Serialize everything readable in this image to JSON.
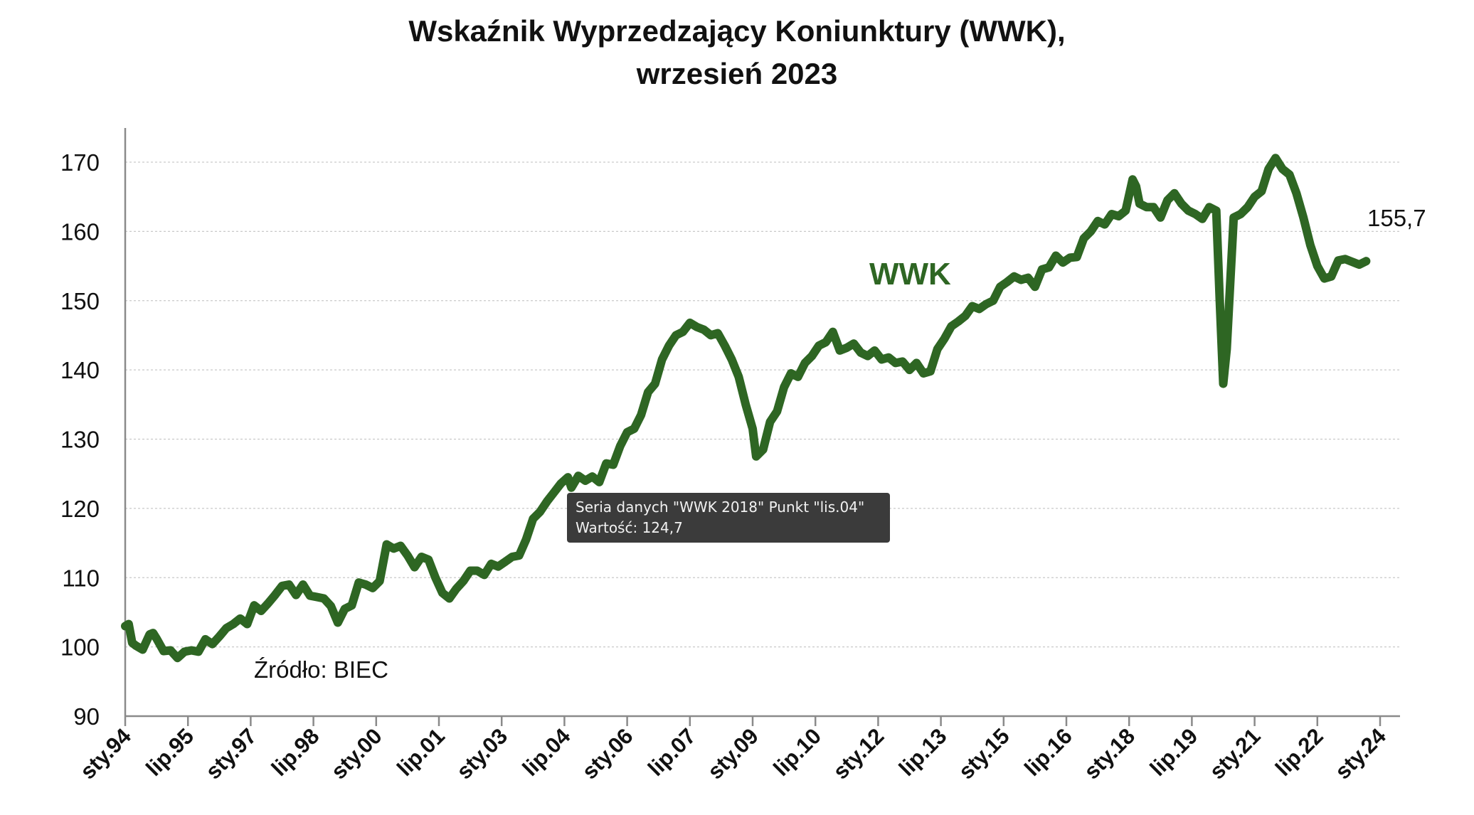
{
  "title_lines": [
    "Wskaźnik Wyprzedzający Koniunktury (WWK),",
    "wrzesień 2023"
  ],
  "series_label": "WWK",
  "end_value_label": "155,7",
  "source_label": "Źródło: BIEC",
  "tooltip": {
    "line1": "Seria danych \"WWK 2018\" Punkt \"lis.04\"",
    "line2": "Wartość: 124,7"
  },
  "colors": {
    "series": "#2e6623",
    "axis": "#8a8a8a",
    "grid": "#c9c9c9"
  },
  "chart_data": {
    "type": "line",
    "title": "Wskaźnik Wyprzedzający Koniunktury (WWK), wrzesień 2023",
    "xlabel": "",
    "ylabel": "",
    "ylim": [
      90,
      170
    ],
    "yticks": [
      90,
      100,
      110,
      120,
      130,
      140,
      150,
      160,
      170
    ],
    "xlim": [
      "1994-01",
      "2024-01"
    ],
    "xticks": [
      {
        "date": "1994-01",
        "label": "sty.94"
      },
      {
        "date": "1995-07",
        "label": "lip.95"
      },
      {
        "date": "1997-01",
        "label": "sty.97"
      },
      {
        "date": "1998-07",
        "label": "lip.98"
      },
      {
        "date": "2000-01",
        "label": "sty.00"
      },
      {
        "date": "2001-07",
        "label": "lip.01"
      },
      {
        "date": "2003-01",
        "label": "sty.03"
      },
      {
        "date": "2004-07",
        "label": "lip.04"
      },
      {
        "date": "2006-01",
        "label": "sty.06"
      },
      {
        "date": "2007-07",
        "label": "lip.07"
      },
      {
        "date": "2009-01",
        "label": "sty.09"
      },
      {
        "date": "2010-07",
        "label": "lip.10"
      },
      {
        "date": "2012-01",
        "label": "sty.12"
      },
      {
        "date": "2013-07",
        "label": "lip.13"
      },
      {
        "date": "2015-01",
        "label": "sty.15"
      },
      {
        "date": "2016-07",
        "label": "lip.16"
      },
      {
        "date": "2018-01",
        "label": "sty.18"
      },
      {
        "date": "2019-07",
        "label": "lip.19"
      },
      {
        "date": "2021-01",
        "label": "sty.21"
      },
      {
        "date": "2022-07",
        "label": "lip.22"
      },
      {
        "date": "2024-01",
        "label": "sty.24"
      }
    ],
    "grid": true,
    "series": [
      {
        "name": "WWK",
        "points": [
          [
            "1994-01",
            103.0
          ],
          [
            "1994-02",
            103.3
          ],
          [
            "1994-03",
            100.6
          ],
          [
            "1994-04",
            100.2
          ],
          [
            "1994-06",
            99.6
          ],
          [
            "1994-08",
            101.8
          ],
          [
            "1994-09",
            102.0
          ],
          [
            "1994-10",
            101.2
          ],
          [
            "1994-12",
            99.4
          ],
          [
            "1995-02",
            99.5
          ],
          [
            "1995-04",
            98.4
          ],
          [
            "1995-06",
            99.3
          ],
          [
            "1995-08",
            99.5
          ],
          [
            "1995-10",
            99.3
          ],
          [
            "1995-12",
            101.1
          ],
          [
            "1996-02",
            100.4
          ],
          [
            "1996-04",
            101.5
          ],
          [
            "1996-06",
            102.7
          ],
          [
            "1996-08",
            103.3
          ],
          [
            "1996-10",
            104.1
          ],
          [
            "1996-12",
            103.3
          ],
          [
            "1997-02",
            106.0
          ],
          [
            "1997-04",
            105.2
          ],
          [
            "1997-06",
            106.3
          ],
          [
            "1997-08",
            107.5
          ],
          [
            "1997-10",
            108.8
          ],
          [
            "1997-12",
            109.0
          ],
          [
            "1998-02",
            107.5
          ],
          [
            "1998-04",
            109.0
          ],
          [
            "1998-06",
            107.4
          ],
          [
            "1998-08",
            107.2
          ],
          [
            "1998-10",
            107.0
          ],
          [
            "1998-12",
            105.9
          ],
          [
            "1999-02",
            103.5
          ],
          [
            "1999-04",
            105.5
          ],
          [
            "1999-06",
            106.0
          ],
          [
            "1999-08",
            109.3
          ],
          [
            "1999-10",
            109.0
          ],
          [
            "1999-12",
            108.5
          ],
          [
            "2000-02",
            109.5
          ],
          [
            "2000-04",
            114.8
          ],
          [
            "2000-06",
            114.2
          ],
          [
            "2000-08",
            114.6
          ],
          [
            "2000-10",
            113.2
          ],
          [
            "2000-12",
            111.5
          ],
          [
            "2001-02",
            113.0
          ],
          [
            "2001-04",
            112.6
          ],
          [
            "2001-06",
            110.0
          ],
          [
            "2001-08",
            107.8
          ],
          [
            "2001-10",
            107.0
          ],
          [
            "2001-12",
            108.4
          ],
          [
            "2002-02",
            109.5
          ],
          [
            "2002-04",
            111.0
          ],
          [
            "2002-06",
            111.0
          ],
          [
            "2002-08",
            110.4
          ],
          [
            "2002-10",
            112.0
          ],
          [
            "2002-12",
            111.6
          ],
          [
            "2003-02",
            112.3
          ],
          [
            "2003-04",
            113.0
          ],
          [
            "2003-06",
            113.2
          ],
          [
            "2003-08",
            115.5
          ],
          [
            "2003-10",
            118.5
          ],
          [
            "2003-12",
            119.5
          ],
          [
            "2004-02",
            121.0
          ],
          [
            "2004-04",
            122.3
          ],
          [
            "2004-06",
            123.6
          ],
          [
            "2004-08",
            124.5
          ],
          [
            "2004-09",
            123.0
          ],
          [
            "2004-11",
            124.7
          ],
          [
            "2005-01",
            124.0
          ],
          [
            "2005-03",
            124.6
          ],
          [
            "2005-05",
            123.8
          ],
          [
            "2005-07",
            126.5
          ],
          [
            "2005-09",
            126.3
          ],
          [
            "2005-11",
            129.0
          ],
          [
            "2006-01",
            131.0
          ],
          [
            "2006-03",
            131.5
          ],
          [
            "2006-05",
            133.5
          ],
          [
            "2006-07",
            136.8
          ],
          [
            "2006-09",
            138.0
          ],
          [
            "2006-11",
            141.5
          ],
          [
            "2007-01",
            143.5
          ],
          [
            "2007-03",
            145.0
          ],
          [
            "2007-05",
            145.5
          ],
          [
            "2007-07",
            146.8
          ],
          [
            "2007-09",
            146.2
          ],
          [
            "2007-11",
            145.8
          ],
          [
            "2008-01",
            145.0
          ],
          [
            "2008-03",
            145.3
          ],
          [
            "2008-05",
            143.5
          ],
          [
            "2008-07",
            141.5
          ],
          [
            "2008-09",
            139.0
          ],
          [
            "2008-11",
            135.0
          ],
          [
            "2009-01",
            131.5
          ],
          [
            "2009-02",
            127.5
          ],
          [
            "2009-04",
            128.5
          ],
          [
            "2009-06",
            132.5
          ],
          [
            "2009-08",
            134.0
          ],
          [
            "2009-10",
            137.5
          ],
          [
            "2009-12",
            139.5
          ],
          [
            "2010-02",
            139.0
          ],
          [
            "2010-04",
            141.0
          ],
          [
            "2010-06",
            142.0
          ],
          [
            "2010-08",
            143.5
          ],
          [
            "2010-10",
            144.0
          ],
          [
            "2010-12",
            145.5
          ],
          [
            "2011-02",
            142.8
          ],
          [
            "2011-04",
            143.2
          ],
          [
            "2011-06",
            143.8
          ],
          [
            "2011-08",
            142.5
          ],
          [
            "2011-10",
            142.0
          ],
          [
            "2011-12",
            142.8
          ],
          [
            "2012-02",
            141.5
          ],
          [
            "2012-04",
            141.8
          ],
          [
            "2012-06",
            141.0
          ],
          [
            "2012-08",
            141.2
          ],
          [
            "2012-10",
            140.0
          ],
          [
            "2012-12",
            141.0
          ],
          [
            "2013-02",
            139.5
          ],
          [
            "2013-04",
            139.8
          ],
          [
            "2013-06",
            143.0
          ],
          [
            "2013-08",
            144.5
          ],
          [
            "2013-10",
            146.3
          ],
          [
            "2013-12",
            147.0
          ],
          [
            "2014-02",
            147.8
          ],
          [
            "2014-04",
            149.2
          ],
          [
            "2014-06",
            148.8
          ],
          [
            "2014-08",
            149.5
          ],
          [
            "2014-10",
            150.0
          ],
          [
            "2014-12",
            152.0
          ],
          [
            "2015-02",
            152.7
          ],
          [
            "2015-04",
            153.5
          ],
          [
            "2015-06",
            153.0
          ],
          [
            "2015-08",
            153.3
          ],
          [
            "2015-10",
            152.0
          ],
          [
            "2015-12",
            154.5
          ],
          [
            "2016-02",
            154.8
          ],
          [
            "2016-04",
            156.5
          ],
          [
            "2016-06",
            155.5
          ],
          [
            "2016-08",
            156.2
          ],
          [
            "2016-10",
            156.3
          ],
          [
            "2016-12",
            159.0
          ],
          [
            "2017-02",
            160.0
          ],
          [
            "2017-04",
            161.5
          ],
          [
            "2017-06",
            161.0
          ],
          [
            "2017-08",
            162.5
          ],
          [
            "2017-10",
            162.2
          ],
          [
            "2017-12",
            163.0
          ],
          [
            "2018-02",
            167.5
          ],
          [
            "2018-03",
            166.5
          ],
          [
            "2018-04",
            164.0
          ],
          [
            "2018-06",
            163.5
          ],
          [
            "2018-08",
            163.5
          ],
          [
            "2018-10",
            162.0
          ],
          [
            "2018-12",
            164.5
          ],
          [
            "2019-02",
            165.5
          ],
          [
            "2019-04",
            164.0
          ],
          [
            "2019-06",
            163.0
          ],
          [
            "2019-08",
            162.5
          ],
          [
            "2019-10",
            161.8
          ],
          [
            "2019-12",
            163.5
          ],
          [
            "2020-02",
            163.0
          ],
          [
            "2020-03",
            150.0
          ],
          [
            "2020-04",
            138.0
          ],
          [
            "2020-05",
            143.0
          ],
          [
            "2020-07",
            162.0
          ],
          [
            "2020-09",
            162.5
          ],
          [
            "2020-11",
            163.5
          ],
          [
            "2021-01",
            165.0
          ],
          [
            "2021-03",
            165.8
          ],
          [
            "2021-05",
            169.0
          ],
          [
            "2021-07",
            170.6
          ],
          [
            "2021-09",
            169.0
          ],
          [
            "2021-11",
            168.2
          ],
          [
            "2022-01",
            165.5
          ],
          [
            "2022-03",
            162.0
          ],
          [
            "2022-05",
            158.0
          ],
          [
            "2022-07",
            155.0
          ],
          [
            "2022-09",
            153.2
          ],
          [
            "2022-11",
            153.5
          ],
          [
            "2023-01",
            155.8
          ],
          [
            "2023-03",
            156.0
          ],
          [
            "2023-05",
            155.6
          ],
          [
            "2023-07",
            155.2
          ],
          [
            "2023-09",
            155.7
          ]
        ]
      }
    ]
  }
}
